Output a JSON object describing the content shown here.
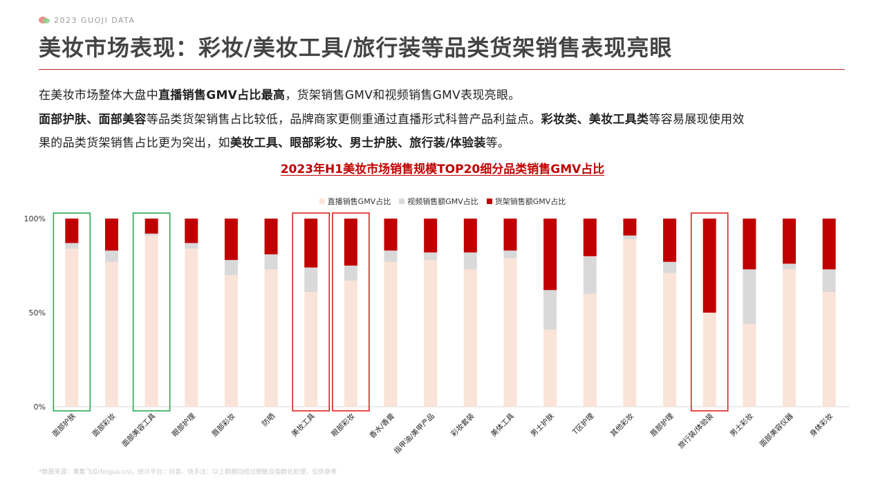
{
  "header": {
    "brand": "2023  GUOJI DATA",
    "title": "美妆市场表现：彩妆/美妆工具/旅行装等品类货架销售表现亮眼"
  },
  "body_text": {
    "p1_a": "在美妆市场整体大盘中",
    "p1_b": "直播销售GMV占比最高",
    "p1_c": "，货架销售GMV和视频销售GMV表现亮眼。",
    "p2_a": "面部护肤、面部美容",
    "p2_b": "等品类货架销售占比较低，品牌商家更侧重通过直播形式科普产品利益点。",
    "p2_c": "彩妆类、美妆工具类",
    "p2_d": "等容易展现使用效",
    "p3_a": "果的品类货架销售占比更为突出，如",
    "p3_b": "美妆工具、眼部彩妆、男士护肤、旅行装/体验装",
    "p3_c": "等。"
  },
  "footer": {
    "source": "*数据来源：果集飞瓜(feigua.cn)，统计平台：抖音、快手注：以上数据均经过脱敏及指数化处理，仅供参考"
  },
  "chart_data": {
    "type": "bar",
    "stacked": true,
    "title": "2023年H1美妆市场销售规模TOP20细分品类销售GMV占比",
    "legend_position": "top-center",
    "ylim": [
      0,
      100
    ],
    "y_ticks": [
      "0%",
      "50%",
      "100%"
    ],
    "y_tick_values": [
      0,
      50,
      100
    ],
    "grid": false,
    "categories": [
      "面部护肤",
      "面部彩妆",
      "面部美容工具",
      "眼部护理",
      "唇部彩妆",
      "防晒",
      "美妆工具",
      "眼部彩妆",
      "香水/香膏",
      "指甲油/美甲产品",
      "彩妆套装",
      "美体工具",
      "男士护肤",
      "T区护理",
      "其他彩妆",
      "唇部护理",
      "旅行装/体验装",
      "男士彩妆",
      "面部美容仪器",
      "身体彩妆"
    ],
    "series": [
      {
        "name": "直播销售GMV占比",
        "color": "#fae3d8",
        "values": [
          84,
          77,
          91,
          84,
          70,
          73,
          61,
          67,
          77,
          78,
          73,
          79,
          41,
          60,
          89,
          71,
          50,
          44,
          73,
          61
        ]
      },
      {
        "name": "视频销售额GMV占比",
        "color": "#d9d9d9",
        "values": [
          3,
          6,
          1,
          3,
          8,
          8,
          13,
          8,
          6,
          4,
          9,
          4,
          21,
          20,
          2,
          6,
          0,
          29,
          3,
          12
        ]
      },
      {
        "name": "货架销售额GMV占比",
        "color": "#c00000",
        "values": [
          13,
          17,
          8,
          13,
          22,
          19,
          26,
          25,
          17,
          18,
          18,
          17,
          38,
          20,
          9,
          23,
          50,
          27,
          24,
          27
        ]
      }
    ],
    "highlights": [
      {
        "category_index": 0,
        "color": "#2ca84a"
      },
      {
        "category_index": 2,
        "color": "#2ca84a"
      },
      {
        "category_index": 6,
        "color": "#e02020"
      },
      {
        "category_index": 7,
        "color": "#e02020"
      },
      {
        "category_index": 16,
        "color": "#e02020"
      }
    ]
  }
}
